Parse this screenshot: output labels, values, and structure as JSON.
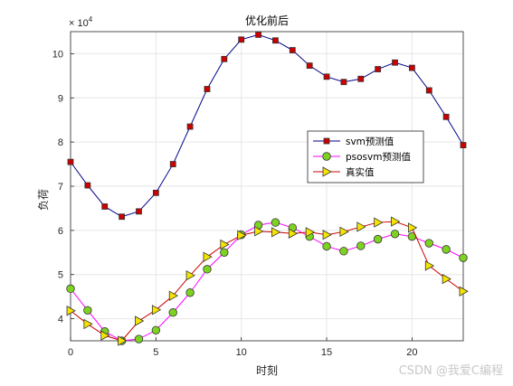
{
  "chart_data": {
    "type": "line",
    "title": "优化前后",
    "xlabel": "时刻",
    "ylabel": "负荷",
    "y_exponent_label": "× 10",
    "y_exponent": "4",
    "xlim": [
      0,
      23
    ],
    "ylim": [
      35000,
      105000
    ],
    "x_ticks": [
      "0",
      "5",
      "10",
      "15",
      "20"
    ],
    "x_tick_values": [
      0,
      5,
      10,
      15,
      20
    ],
    "y_ticks": [
      "4",
      "5",
      "6",
      "7",
      "8",
      "9",
      "10"
    ],
    "y_tick_values": [
      40000,
      50000,
      60000,
      70000,
      80000,
      90000,
      100000
    ],
    "grid": true,
    "legend_position": "right, near middle",
    "x": [
      0,
      1,
      2,
      3,
      4,
      5,
      6,
      7,
      8,
      9,
      10,
      11,
      12,
      13,
      14,
      15,
      16,
      17,
      18,
      19,
      20,
      21,
      22,
      23
    ],
    "series": [
      {
        "name": "svm预测值",
        "color": "#00008b",
        "marker": "square",
        "marker_fill": "#cc0000",
        "values": [
          75500,
          70200,
          65400,
          63100,
          64300,
          68500,
          75000,
          83500,
          92000,
          98800,
          103200,
          104300,
          103000,
          100800,
          97300,
          94800,
          93600,
          94300,
          96500,
          98000,
          96800,
          91700,
          85700,
          79300
        ]
      },
      {
        "name": "psosvm预测值",
        "color": "#ff00ff",
        "marker": "circle",
        "marker_fill": "#7ed321",
        "values": [
          46800,
          41900,
          37100,
          35000,
          35400,
          37400,
          41400,
          45900,
          51200,
          55000,
          59000,
          61200,
          61800,
          60600,
          58600,
          56400,
          55300,
          56500,
          58000,
          59200,
          58600,
          57100,
          55700,
          53800
        ]
      },
      {
        "name": "真实值",
        "color": "#cc0000",
        "marker": "triangle-right",
        "marker_fill": "#f5e300",
        "values": [
          41800,
          38800,
          36200,
          35000,
          39500,
          42000,
          45200,
          49800,
          54000,
          56800,
          58900,
          59800,
          59600,
          59300,
          59600,
          59000,
          59700,
          60800,
          61800,
          62000,
          60600,
          52000,
          49000,
          46200
        ]
      }
    ],
    "watermark": "CSDN @我爱C编程"
  }
}
